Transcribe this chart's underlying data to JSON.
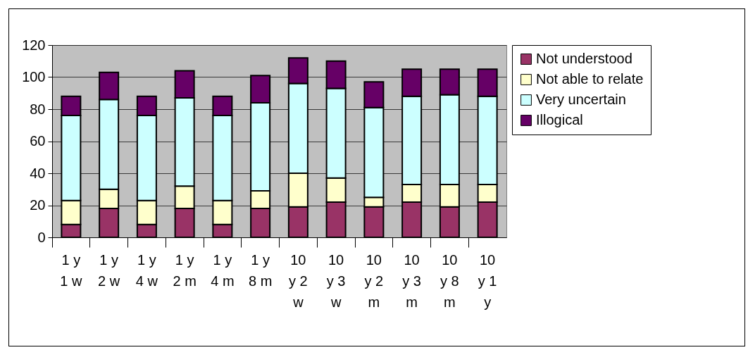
{
  "chart_data": {
    "type": "bar",
    "stacked": true,
    "categories": [
      "1 y 1 w",
      "1 y 2 w",
      "1 y 4 w",
      "1 y 2 m",
      "1 y 4 m",
      "1 y 8 m",
      "10 y 2 w",
      "10 y 3 w",
      "10 y 2 m",
      "10 y 3 m",
      "10 y 8 m",
      "10 y 1 y"
    ],
    "series": [
      {
        "name": "Not understood",
        "color": "#993366",
        "values": [
          8,
          18,
          8,
          18,
          8,
          18,
          19,
          22,
          19,
          22,
          19,
          22
        ]
      },
      {
        "name": "Not able to relate",
        "color": "#ffffcc",
        "values": [
          15,
          12,
          15,
          14,
          15,
          11,
          21,
          15,
          6,
          11,
          14,
          11
        ]
      },
      {
        "name": "Very uncertain",
        "color": "#ccffff",
        "values": [
          53,
          56,
          53,
          55,
          53,
          55,
          56,
          56,
          56,
          55,
          56,
          55
        ]
      },
      {
        "name": "Illogical",
        "color": "#660066",
        "values": [
          12,
          17,
          12,
          17,
          12,
          17,
          16,
          17,
          16,
          17,
          16,
          17
        ]
      }
    ],
    "ylim": [
      0,
      120
    ],
    "yticks": [
      0,
      20,
      40,
      60,
      80,
      100,
      120
    ],
    "grid": "y",
    "legend": "right"
  }
}
